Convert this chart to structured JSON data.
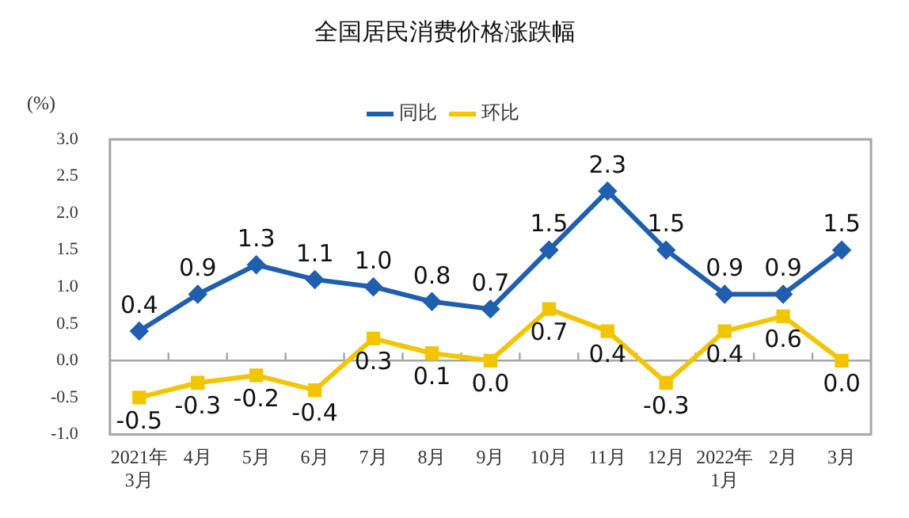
{
  "chart_data": {
    "type": "line",
    "title": "全国居民消费价格涨跌幅",
    "ylabel": "(%)",
    "categories": [
      "2021年\n3月",
      "4月",
      "5月",
      "6月",
      "7月",
      "8月",
      "9月",
      "10月",
      "11月",
      "12月",
      "2022年\n1月",
      "2月",
      "3月"
    ],
    "series": [
      {
        "name": "同比",
        "color": "#1f5fae",
        "marker": "diamond",
        "values": [
          0.4,
          0.9,
          1.3,
          1.1,
          1.0,
          0.8,
          0.7,
          1.5,
          2.3,
          1.5,
          0.9,
          0.9,
          1.5
        ],
        "value_labels": [
          "0.4",
          "0.9",
          "1.3",
          "1.1",
          "1.0",
          "0.8",
          "0.7",
          "1.5",
          "2.3",
          "1.5",
          "0.9",
          "0.9",
          "1.5"
        ]
      },
      {
        "name": "环比",
        "color": "#f2c500",
        "marker": "square",
        "values": [
          -0.5,
          -0.3,
          -0.2,
          -0.4,
          0.3,
          0.1,
          0.0,
          0.7,
          0.4,
          -0.3,
          0.4,
          0.6,
          0.0
        ],
        "value_labels": [
          "-0.5",
          "-0.3",
          "-0.2",
          "-0.4",
          "0.3",
          "0.1",
          "0.0",
          "0.7",
          "0.4",
          "-0.3",
          "0.4",
          "0.6",
          "0.0"
        ]
      }
    ],
    "ylim": [
      -1.0,
      3.0
    ],
    "yticks": [
      {
        "value": -1.0,
        "label": "-1.0"
      },
      {
        "value": -0.5,
        "label": "-0.5"
      },
      {
        "value": 0,
        "label": "0.0"
      },
      {
        "value": 0.5,
        "label": "0.5"
      },
      {
        "value": 1.0,
        "label": "1.0"
      },
      {
        "value": 1.5,
        "label": "1.5"
      },
      {
        "value": 2.0,
        "label": "2.0"
      },
      {
        "value": 2.5,
        "label": "2.5"
      },
      {
        "value": 3.0,
        "label": "3.0"
      }
    ],
    "ref_lines": [
      {
        "axis": "y",
        "value": 0,
        "color": "#a6a6a6"
      }
    ],
    "grid": false,
    "legend": "top",
    "line_style": "solid"
  }
}
